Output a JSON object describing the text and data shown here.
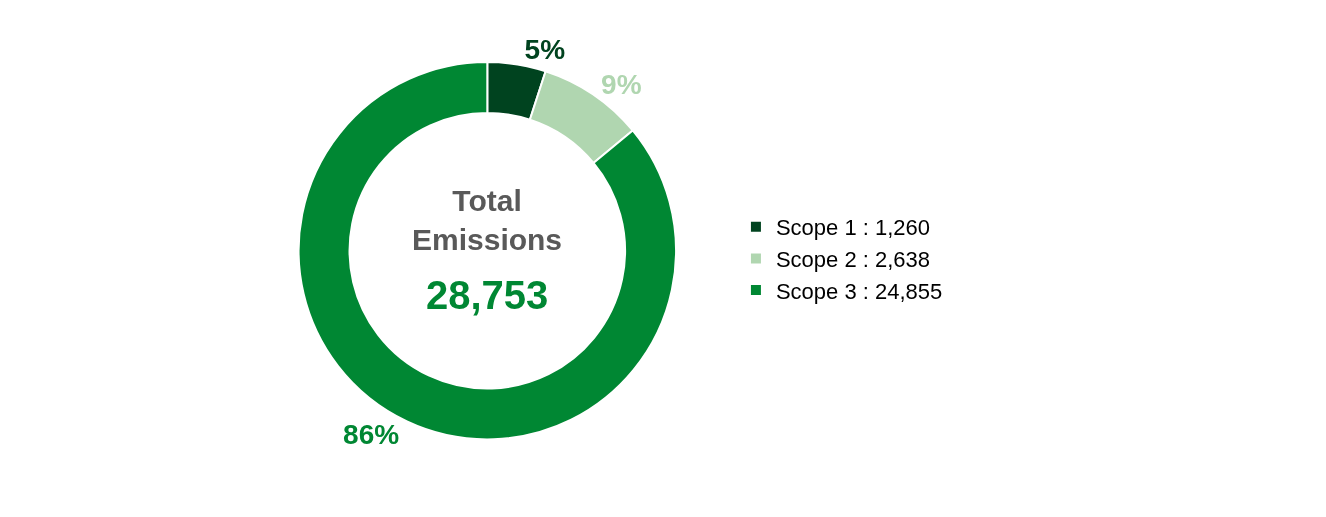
{
  "chart_data": {
    "type": "donut",
    "categories": [
      "Scope 1 : 1,260",
      "Scope 2 : 2,638",
      "Scope 3 : 24,855"
    ],
    "values": [
      5,
      9,
      86
    ],
    "colors": [
      "#00431f",
      "#b0d6b0",
      "#008733"
    ],
    "value_labels": [
      "5%",
      "9%",
      "86%"
    ],
    "annotations": [
      "Total Emissions",
      "28,753"
    ],
    "legend": "right"
  }
}
